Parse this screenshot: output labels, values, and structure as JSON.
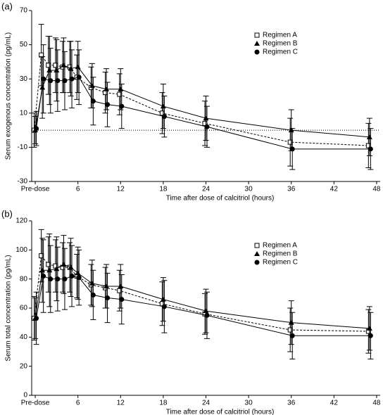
{
  "chart_data": [
    {
      "type": "line",
      "panel_label": "(a)",
      "y_label": "Serum exogenous concentration (pg/mL)",
      "x_label": "Time after dose of calcitriol (hours)",
      "x": [
        0,
        1,
        2,
        3,
        4,
        5,
        6,
        8,
        10,
        12,
        18,
        24,
        36,
        47
      ],
      "xlim": [
        -0.5,
        48.5
      ],
      "xticks": [
        {
          "value": 0,
          "label": "Pre-dose"
        },
        6,
        12,
        18,
        24,
        30,
        36,
        42,
        48
      ],
      "ylim": [
        -30,
        70
      ],
      "yticks": [
        -30,
        -10,
        10,
        30,
        50,
        70
      ],
      "reference_line": 0,
      "legend": "upper right",
      "series": [
        {
          "name": "Regimen A",
          "color": "#000000",
          "marker": "square-open",
          "linestyle": "dashed",
          "values": [
            0,
            44,
            38,
            38,
            37,
            37,
            31,
            25,
            22,
            21,
            10,
            4,
            -7,
            -9
          ],
          "errors": [
            10,
            18,
            17,
            16,
            15,
            15,
            13,
            12,
            12,
            12,
            12,
            13,
            14,
            13
          ]
        },
        {
          "name": "Regimen B",
          "color": "#000000",
          "marker": "triangle",
          "linestyle": "solid",
          "values": [
            0,
            25,
            35,
            35,
            38,
            36,
            37,
            26,
            24,
            24,
            14,
            7,
            0,
            -4
          ],
          "errors": [
            8,
            18,
            20,
            18,
            16,
            16,
            15,
            13,
            12,
            12,
            13,
            13,
            12,
            11
          ]
        },
        {
          "name": "Regimen C",
          "color": "#000000",
          "marker": "circle",
          "linestyle": "solid",
          "values": [
            1,
            30,
            29,
            29,
            29,
            30,
            31,
            17,
            15,
            14,
            8,
            2,
            -11,
            -11
          ],
          "errors": [
            10,
            20,
            19,
            18,
            17,
            17,
            16,
            14,
            13,
            13,
            12,
            12,
            12,
            12
          ]
        }
      ]
    },
    {
      "type": "line",
      "panel_label": "(b)",
      "y_label": "Serum total concentration (pg/mL)",
      "x_label": "Time after dose of calcitriol (hours)",
      "x": [
        0,
        1,
        2,
        3,
        4,
        5,
        6,
        8,
        10,
        12,
        18,
        24,
        36,
        47
      ],
      "xlim": [
        -0.5,
        48.5
      ],
      "xticks": [
        {
          "value": 0,
          "label": "Pre-dose"
        },
        6,
        12,
        18,
        24,
        30,
        36,
        42,
        48
      ],
      "ylim": [
        0,
        120
      ],
      "yticks": [
        0,
        20,
        40,
        60,
        80,
        100,
        120
      ],
      "legend": "upper right",
      "series": [
        {
          "name": "Regimen A",
          "color": "#000000",
          "marker": "square-open",
          "linestyle": "dashed",
          "values": [
            53,
            96,
            90,
            89,
            88,
            88,
            82,
            76,
            74,
            72,
            63,
            56,
            45,
            44
          ],
          "errors": [
            15,
            18,
            19,
            18,
            17,
            17,
            15,
            14,
            14,
            14,
            15,
            14,
            15,
            15
          ]
        },
        {
          "name": "Regimen B",
          "color": "#000000",
          "marker": "triangle",
          "linestyle": "solid",
          "values": [
            53,
            86,
            86,
            87,
            90,
            88,
            84,
            77,
            75,
            75,
            66,
            58,
            50,
            46
          ],
          "errors": [
            14,
            22,
            25,
            22,
            20,
            20,
            18,
            16,
            15,
            15,
            15,
            15,
            15,
            15
          ]
        },
        {
          "name": "Regimen C",
          "color": "#000000",
          "marker": "circle",
          "linestyle": "solid",
          "values": [
            53,
            82,
            80,
            80,
            80,
            82,
            81,
            69,
            67,
            66,
            61,
            55,
            41,
            41
          ],
          "errors": [
            18,
            25,
            23,
            22,
            21,
            21,
            19,
            17,
            17,
            17,
            18,
            16,
            16,
            16
          ]
        }
      ]
    }
  ]
}
